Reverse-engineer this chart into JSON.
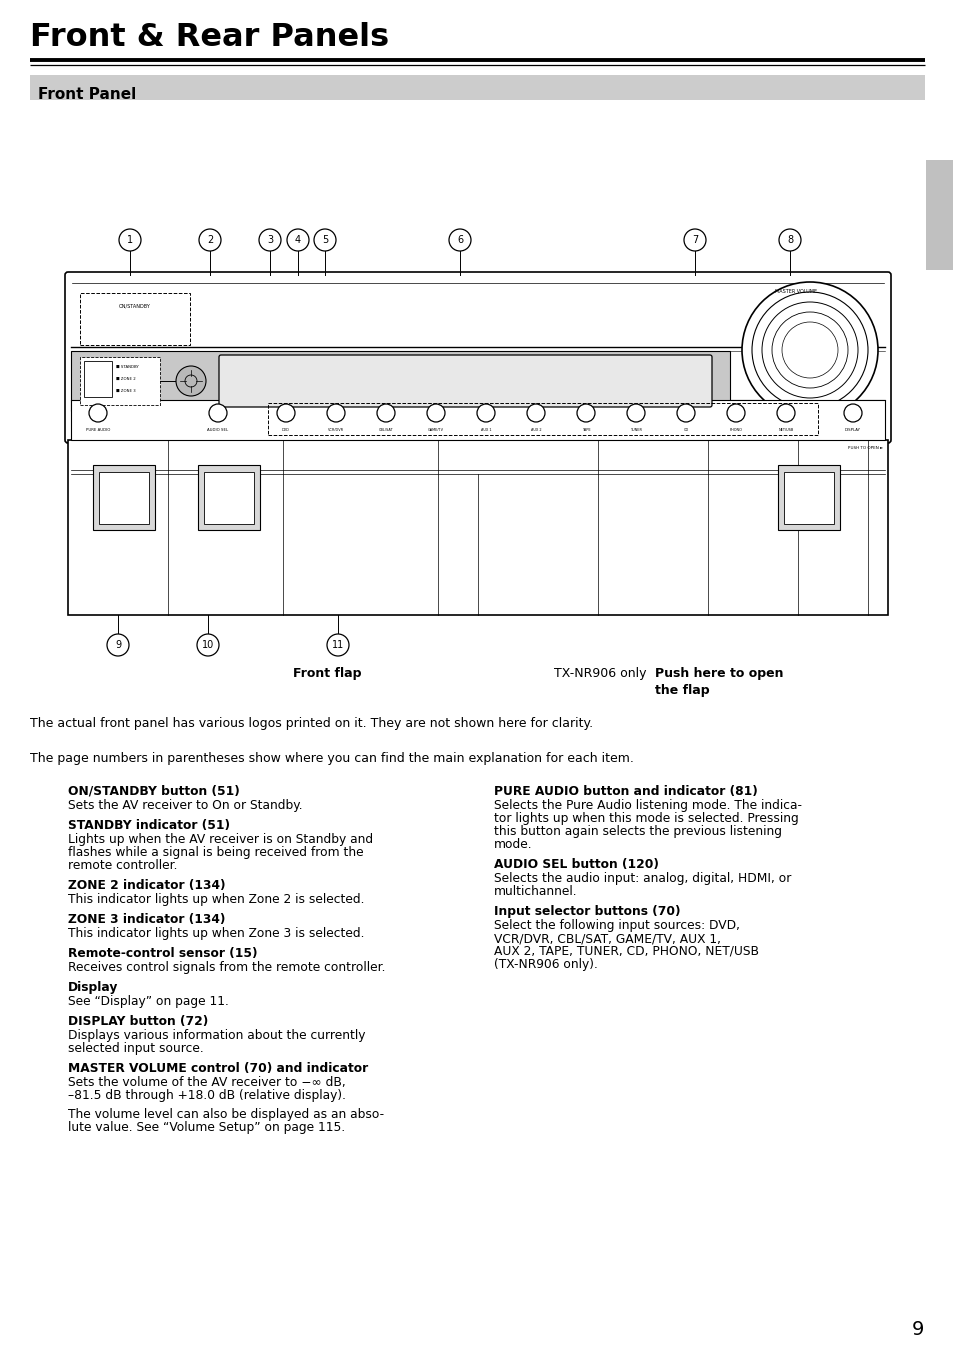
{
  "page_title": "Front & Rear Panels",
  "section_title": "Front Panel",
  "page_number": "9",
  "note1": "The actual front panel has various logos printed on it. They are not shown here for clarity.",
  "note2": "The page numbers in parentheses show where you can find the main explanation for each item.",
  "caption_front_flap": "Front flap",
  "caption_tx": "TX-NR906 only",
  "caption_push": "Push here to open\nthe flap",
  "items_left": [
    {
      "bold": "ON/STANDBY button (51)",
      "normal": "Sets the AV receiver to On or Standby."
    },
    {
      "bold": "STANDBY indicator (51)",
      "normal": "Lights up when the AV receiver is on Standby and\nflashes while a signal is being received from the\nremote controller."
    },
    {
      "bold": "ZONE 2 indicator (134)",
      "normal": "This indicator lights up when Zone 2 is selected."
    },
    {
      "bold": "ZONE 3 indicator (134)",
      "normal": "This indicator lights up when Zone 3 is selected."
    },
    {
      "bold": "Remote-control sensor (15)",
      "normal": "Receives control signals from the remote controller."
    },
    {
      "bold": "Display",
      "normal": "See “Display” on page 11."
    },
    {
      "bold": "DISPLAY button (72)",
      "normal": "Displays various information about the currently\nselected input source."
    },
    {
      "bold": "MASTER VOLUME control (70) and indicator",
      "normal": "Sets the volume of the AV receiver to −∞ dB,\n–81.5 dB through +18.0 dB (relative display).\n\nThe volume level can also be displayed as an abso-\nlute value. See “Volume Setup” on page 115."
    }
  ],
  "items_right": [
    {
      "bold": "PURE AUDIO button and indicator (81)",
      "normal": "Selects the Pure Audio listening mode. The indica-\ntor lights up when this mode is selected. Pressing\nthis button again selects the previous listening\nmode."
    },
    {
      "bold": "AUDIO SEL button (120)",
      "normal": "Selects the audio input: analog, digital, HDMI, or\nmultichannel."
    },
    {
      "bold": "Input selector buttons (70)",
      "normal": "Select the following input sources: DVD,\nVCR/DVR, CBL/SAT, GAME/TV, AUX 1,\nAUX 2, TAPE, TUNER, CD, PHONO, NET/USB\n(TX-NR906 only)."
    }
  ],
  "bg_color": "#ffffff",
  "section_bg": "#cccccc",
  "tab_color": "#c0c0c0"
}
